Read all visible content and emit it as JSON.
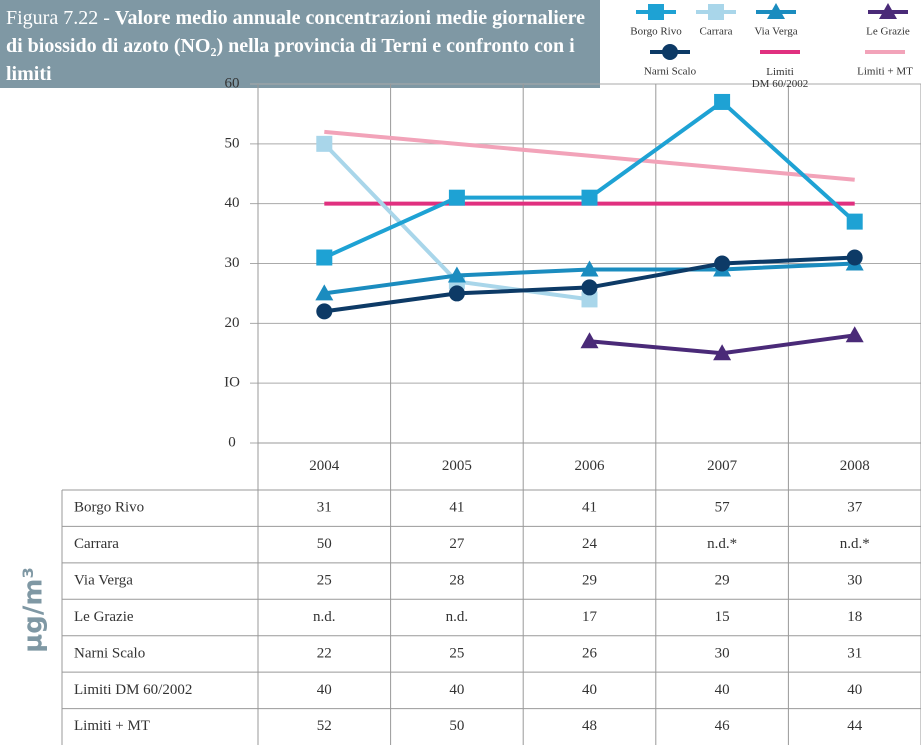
{
  "chart_data": {
    "type": "line",
    "title_prefix": "Figura 7.22 - ",
    "title": "Valore medio annuale concentrazioni medie giornaliere di biossido di azoto (NO₂) nella provincia di Terni e confronto con i limiti",
    "y_label": "µg/m³",
    "categories": [
      "2004",
      "2005",
      "2006",
      "2007",
      "2008"
    ],
    "ylim": [
      0,
      60
    ],
    "yticks": [
      0,
      {
        "value": 10,
        "label": "IO"
      },
      20,
      30,
      40,
      50,
      60
    ],
    "grid": true,
    "series": [
      {
        "name": "Borgo Rivo",
        "color": "#1ea2d4",
        "marker": "square",
        "values": [
          31,
          41,
          41,
          57,
          37
        ]
      },
      {
        "name": "Carrara",
        "color": "#a9d6ea",
        "marker": "square",
        "values": [
          50,
          27,
          24,
          null,
          null
        ],
        "value_labels": [
          "50",
          "27",
          "24",
          "n.d.*",
          "n.d.*"
        ]
      },
      {
        "name": "Via Verga",
        "color": "#1b8cbf",
        "marker": "triangle",
        "values": [
          25,
          28,
          29,
          29,
          30
        ]
      },
      {
        "name": "Le Grazie",
        "color": "#4a2a78",
        "marker": "triangle",
        "values": [
          null,
          null,
          17,
          15,
          18
        ],
        "value_labels": [
          "n.d.",
          "n.d.",
          "17",
          "15",
          "18"
        ]
      },
      {
        "name": "Narni Scalo",
        "color": "#0d3a66",
        "marker": "circle",
        "values": [
          22,
          25,
          26,
          30,
          31
        ]
      },
      {
        "name": "Limiti DM 60/2002",
        "color": "#e0307f",
        "marker": "none",
        "values": [
          40,
          40,
          40,
          40,
          40
        ]
      },
      {
        "name": "Limiti + MT",
        "color": "#f2a3b9",
        "marker": "none",
        "values": [
          52,
          50,
          48,
          46,
          44
        ]
      }
    ]
  }
}
